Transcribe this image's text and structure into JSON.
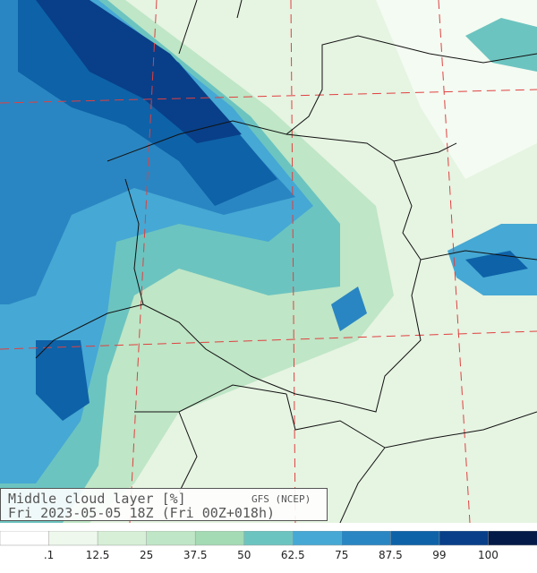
{
  "header": {
    "title": "Middle cloud layer  [%]",
    "source": "GFS (NCEP)",
    "time": "Fri 2023-05-05 18Z (Fri 00Z+018h)"
  },
  "legend": {
    "labels": [
      ".1",
      "12.5",
      "25",
      "37.5",
      "50",
      "62.5",
      "75",
      "87.5",
      "99",
      "100"
    ],
    "colors": [
      "#ffffff",
      "#eef8ec",
      "#d6efd6",
      "#bfe6c6",
      "#a4dab4",
      "#6cc4c0",
      "#46a8d4",
      "#2a86c2",
      "#0e62a8",
      "#083f88",
      "#041a48"
    ]
  }
}
